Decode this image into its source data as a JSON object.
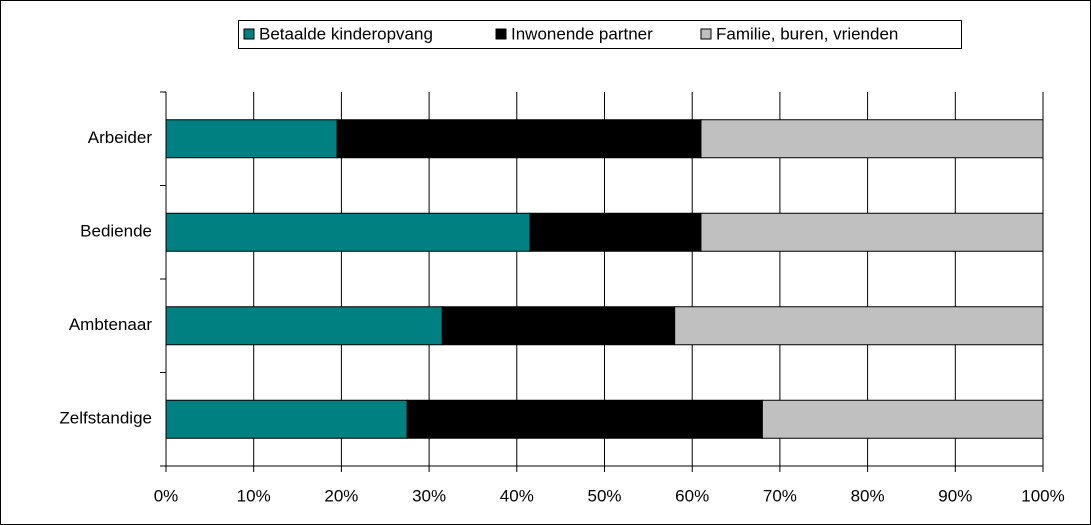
{
  "chart_data": {
    "type": "stacked-barh",
    "categories": [
      "Arbeider",
      "Bediende",
      "Ambtenaar",
      "Zelfstandige"
    ],
    "series": [
      {
        "name": "Betaalde kinderopvang",
        "color": "#008080",
        "values": [
          19.5,
          41.5,
          31.5,
          27.5
        ]
      },
      {
        "name": "Inwonende partner",
        "color": "#000000",
        "values": [
          41.5,
          19.5,
          26.5,
          40.5
        ]
      },
      {
        "name": "Familie, buren, vrienden",
        "color": "#c0c0c0",
        "values": [
          39,
          39,
          42,
          32
        ]
      }
    ],
    "xlim": [
      0,
      100
    ],
    "xticks": [
      {
        "value": 0,
        "label": "0%"
      },
      {
        "value": 10,
        "label": "10%"
      },
      {
        "value": 20,
        "label": "20%"
      },
      {
        "value": 30,
        "label": "30%"
      },
      {
        "value": 40,
        "label": "40%"
      },
      {
        "value": 50,
        "label": "50%"
      },
      {
        "value": 60,
        "label": "60%"
      },
      {
        "value": 70,
        "label": "70%"
      },
      {
        "value": 80,
        "label": "80%"
      },
      {
        "value": 90,
        "label": "90%"
      },
      {
        "value": 100,
        "label": "100%"
      }
    ],
    "grid": true,
    "legend": "top"
  }
}
